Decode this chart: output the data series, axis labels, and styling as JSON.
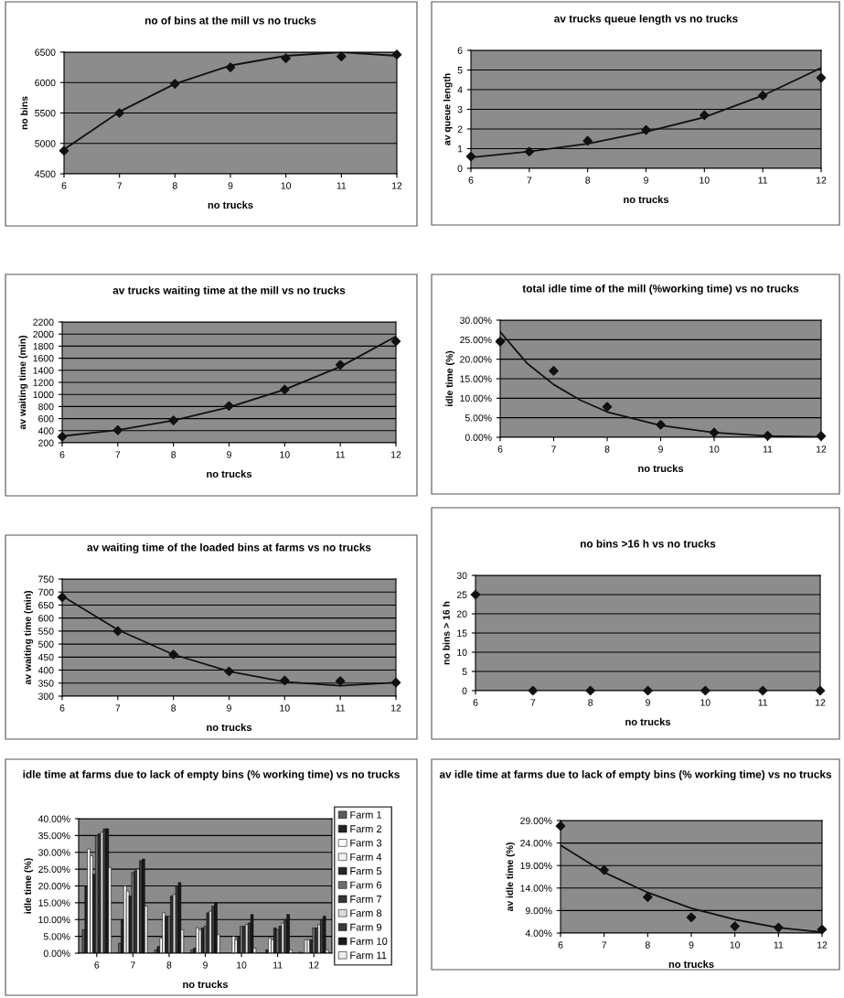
{
  "chart_data": [
    {
      "type": "scatter",
      "title": "no of bins at the mill vs no trucks",
      "xlabel": "no trucks",
      "ylabel": "no bins",
      "xlim": [
        6,
        12
      ],
      "xticks": [
        6,
        7,
        8,
        9,
        10,
        11,
        12
      ],
      "ylim": [
        4500,
        6500
      ],
      "yticks": [
        4500,
        5000,
        5500,
        6000,
        6500
      ],
      "grid": "y",
      "series": [
        {
          "type": "scatter",
          "marker": "diamond",
          "color": "#111111",
          "x": [
            6,
            7,
            8,
            9,
            10,
            11,
            12
          ],
          "values": [
            4880,
            5500,
            5980,
            6250,
            6400,
            6430,
            6460
          ]
        },
        {
          "type": "line",
          "marker": "none",
          "color": "#111111",
          "line_style": "solid",
          "x": [
            6,
            7,
            8,
            9,
            10,
            11,
            12
          ],
          "values": [
            4900,
            5520,
            5980,
            6280,
            6440,
            6500,
            6440
          ]
        }
      ]
    },
    {
      "type": "scatter",
      "title": "av trucks queue length vs no trucks",
      "xlabel": "no trucks",
      "ylabel": "av queue length",
      "xlim": [
        6,
        12
      ],
      "xticks": [
        6,
        7,
        8,
        9,
        10,
        11,
        12
      ],
      "ylim": [
        0,
        6
      ],
      "yticks": [
        0,
        1,
        2,
        3,
        4,
        5,
        6
      ],
      "grid": "y",
      "series": [
        {
          "type": "scatter",
          "marker": "diamond",
          "color": "#111111",
          "x": [
            6,
            7,
            8,
            9,
            10,
            11,
            12
          ],
          "values": [
            0.6,
            0.85,
            1.4,
            1.95,
            2.7,
            3.7,
            4.6
          ]
        },
        {
          "type": "line",
          "marker": "none",
          "color": "#111111",
          "line_style": "solid",
          "x": [
            6,
            7,
            8,
            9,
            10,
            11,
            12
          ],
          "values": [
            0.55,
            0.85,
            1.25,
            1.85,
            2.6,
            3.7,
            5.1
          ]
        }
      ]
    },
    {
      "type": "scatter",
      "title": "av trucks waiting time at the mill vs no trucks",
      "xlabel": "no trucks",
      "ylabel": "av waiting time (min)",
      "xlim": [
        6,
        12
      ],
      "xticks": [
        6,
        7,
        8,
        9,
        10,
        11,
        12
      ],
      "ylim": [
        200,
        2200
      ],
      "yticks": [
        200,
        400,
        600,
        800,
        1000,
        1200,
        1400,
        1600,
        1800,
        2000,
        2200
      ],
      "grid": "y",
      "series": [
        {
          "type": "scatter",
          "marker": "diamond",
          "color": "#111111",
          "x": [
            6,
            7,
            8,
            9,
            10,
            11,
            12
          ],
          "values": [
            300,
            410,
            570,
            810,
            1080,
            1490,
            1880
          ]
        },
        {
          "type": "line",
          "marker": "none",
          "color": "#111111",
          "line_style": "solid",
          "x": [
            6,
            7,
            8,
            9,
            10,
            11,
            12
          ],
          "values": [
            310,
            410,
            570,
            790,
            1080,
            1460,
            1960
          ]
        }
      ]
    },
    {
      "type": "scatter",
      "title": "total idle time of the mill (%working time) vs no trucks",
      "xlabel": "no trucks",
      "ylabel": "idle time (%)",
      "xlim": [
        6,
        12
      ],
      "xticks": [
        6,
        7,
        8,
        9,
        10,
        11,
        12
      ],
      "ylim": [
        0,
        30
      ],
      "yticks": [
        {
          "value": 0,
          "label": "0.00%"
        },
        {
          "value": 5,
          "label": "5.00%"
        },
        {
          "value": 10,
          "label": "10.00%"
        },
        {
          "value": 15,
          "label": "15.00%"
        },
        {
          "value": 20,
          "label": "20.00%"
        },
        {
          "value": 25,
          "label": "25.00%"
        },
        {
          "value": 30,
          "label": "30.00%"
        }
      ],
      "grid": "y",
      "series": [
        {
          "type": "scatter",
          "marker": "diamond",
          "color": "#111111",
          "x": [
            6,
            7,
            8,
            9,
            10,
            11,
            12
          ],
          "values": [
            24.5,
            17,
            7.8,
            3.2,
            1.2,
            0.4,
            0.3
          ]
        },
        {
          "type": "line",
          "marker": "none",
          "color": "#111111",
          "line_style": "solid",
          "x": [
            6,
            6.5,
            7,
            7.5,
            8,
            9,
            10,
            11,
            12
          ],
          "values": [
            27,
            19,
            13.5,
            9.5,
            6.5,
            3,
            1.2,
            0.3,
            0.1
          ]
        }
      ]
    },
    {
      "type": "scatter",
      "title": "av waiting time of the loaded bins at farms vs no trucks",
      "xlabel": "no trucks",
      "ylabel": "av waiting time (min)",
      "xlim": [
        6,
        12
      ],
      "xticks": [
        6,
        7,
        8,
        9,
        10,
        11,
        12
      ],
      "ylim": [
        300,
        750
      ],
      "yticks": [
        300,
        350,
        400,
        450,
        500,
        550,
        600,
        650,
        700,
        750
      ],
      "grid": "y",
      "series": [
        {
          "type": "scatter",
          "marker": "diamond",
          "color": "#111111",
          "x": [
            6,
            7,
            8,
            9,
            10,
            11,
            12
          ],
          "values": [
            680,
            550,
            460,
            395,
            360,
            358,
            352
          ]
        },
        {
          "type": "line",
          "marker": "none",
          "color": "#111111",
          "line_style": "solid",
          "x": [
            6,
            7,
            8,
            9,
            10,
            11,
            12
          ],
          "values": [
            685,
            555,
            460,
            395,
            355,
            340,
            352
          ]
        }
      ]
    },
    {
      "type": "scatter",
      "title": "no bins >16 h vs no trucks",
      "xlabel": "no trucks",
      "ylabel": "no bins > 16 h",
      "xlim": [
        6,
        12
      ],
      "xticks": [
        6,
        7,
        8,
        9,
        10,
        11,
        12
      ],
      "ylim": [
        0,
        30
      ],
      "yticks": [
        0,
        5,
        10,
        15,
        20,
        25,
        30
      ],
      "grid": "y",
      "series": [
        {
          "type": "scatter",
          "marker": "diamond",
          "color": "#111111",
          "x": [
            6,
            7,
            8,
            9,
            10,
            11,
            12
          ],
          "values": [
            25,
            0,
            0,
            0,
            0,
            0,
            0
          ]
        }
      ]
    },
    {
      "type": "bar",
      "title": "idle time at farms due to lack of empty bins (% working time) vs no trucks",
      "xlabel": "no trucks",
      "ylabel": "idle time (%)",
      "categories": [
        "6",
        "7",
        "8",
        "9",
        "10",
        "11",
        "12"
      ],
      "ylim": [
        0,
        40
      ],
      "yticks": [
        {
          "value": 0,
          "label": "0.00%"
        },
        {
          "value": 5,
          "label": "5.00%"
        },
        {
          "value": 10,
          "label": "10.00%"
        },
        {
          "value": 15,
          "label": "15.00%"
        },
        {
          "value": 20,
          "label": "20.00%"
        },
        {
          "value": 25,
          "label": "25.00%"
        },
        {
          "value": 30,
          "label": "30.00%"
        },
        {
          "value": 35,
          "label": "35.00%"
        },
        {
          "value": 40,
          "label": "40.00%"
        }
      ],
      "grid": "y",
      "legend": "right",
      "series": [
        {
          "name": "Farm 1",
          "color": "#5a5a5a",
          "values": [
            7,
            3,
            1,
            1,
            null,
            null,
            0.3
          ]
        },
        {
          "name": "Farm 2",
          "color": "#222222",
          "values": [
            20,
            10,
            2,
            1.5,
            null,
            1,
            null
          ]
        },
        {
          "name": "Farm 3",
          "color": "#ffffff",
          "values": [
            31,
            20,
            4.5,
            7.5,
            5,
            4.5,
            4
          ]
        },
        {
          "name": "Farm 4",
          "color": "#f2f2f2",
          "values": [
            29,
            18.5,
            12,
            7,
            4,
            4,
            4
          ]
        },
        {
          "name": "Farm 5",
          "color": "#262626",
          "values": [
            23.5,
            17,
            11,
            7.5,
            5,
            7.5,
            4
          ]
        },
        {
          "name": "Farm 6",
          "color": "#6e6e6e",
          "values": [
            35,
            24,
            11,
            8,
            8,
            7,
            7.5
          ]
        },
        {
          "name": "Farm 7",
          "color": "#333333",
          "values": [
            35.5,
            24.5,
            17,
            12,
            8,
            8,
            7.5
          ]
        },
        {
          "name": "Farm 8",
          "color": "#dcdcdc",
          "values": [
            36,
            25,
            17.5,
            12.5,
            8.5,
            9,
            8.5
          ]
        },
        {
          "name": "Farm 9",
          "color": "#3a3a3a",
          "values": [
            37,
            27.5,
            20,
            14,
            9,
            10,
            10
          ]
        },
        {
          "name": "Farm 10",
          "color": "#1a1a1a",
          "values": [
            37,
            28,
            21,
            15,
            11.5,
            11.5,
            11
          ]
        },
        {
          "name": "Farm 11",
          "color": "#eeeeee",
          "values": [
            25.5,
            14,
            7,
            5.5,
            1.5,
            1,
            1
          ]
        }
      ]
    },
    {
      "type": "scatter",
      "title": "av idle time at farms due to lack of empty bins (% working time) vs no trucks",
      "xlabel": "no trucks",
      "ylabel": "av idle time (%)",
      "xlim": [
        6,
        12
      ],
      "xticks": [
        6,
        7,
        8,
        9,
        10,
        11,
        12
      ],
      "ylim": [
        4,
        29
      ],
      "yticks": [
        {
          "value": 4,
          "label": "4.00%"
        },
        {
          "value": 9,
          "label": "9.00%"
        },
        {
          "value": 14,
          "label": "14.00%"
        },
        {
          "value": 19,
          "label": "19.00%"
        },
        {
          "value": 24,
          "label": "24.00%"
        },
        {
          "value": 29,
          "label": "29.00%"
        }
      ],
      "grid": "y",
      "series": [
        {
          "type": "scatter",
          "marker": "diamond",
          "color": "#111111",
          "x": [
            6,
            7,
            8,
            9,
            10,
            11,
            12
          ],
          "values": [
            27.8,
            18,
            12,
            7.5,
            5.5,
            5.2,
            4.8
          ]
        },
        {
          "type": "line",
          "marker": "none",
          "color": "#111111",
          "line_style": "solid",
          "x": [
            6,
            7,
            8,
            9,
            10,
            11,
            12
          ],
          "values": [
            23.5,
            17.5,
            13,
            9.5,
            7,
            5.2,
            4.2
          ]
        }
      ]
    }
  ]
}
